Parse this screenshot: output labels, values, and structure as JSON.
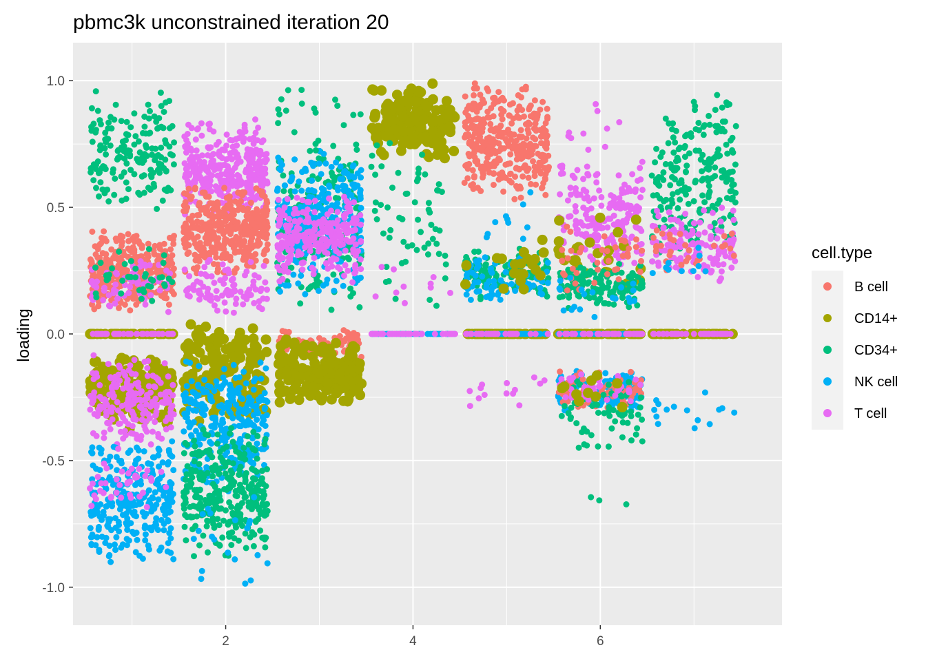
{
  "chart_data": {
    "type": "scatter",
    "title": "pbmc3k unconstrained iteration 20",
    "xlabel": "",
    "ylabel": "loading",
    "xlim": [
      0.37,
      7.94
    ],
    "ylim": [
      -1.15,
      1.15
    ],
    "x_ticks": [
      2,
      4,
      6
    ],
    "x_tick_labels": [
      "2",
      "4",
      "6"
    ],
    "y_ticks": [
      -1.0,
      -0.5,
      0.0,
      0.5,
      1.0
    ],
    "y_tick_labels": [
      "-1.0",
      "-0.5",
      "0.0",
      "0.5",
      "1.0"
    ],
    "grid": true,
    "legend": {
      "title": "cell.type",
      "position": "right"
    },
    "series": [
      {
        "name": "B cell",
        "color": "#F8766D"
      },
      {
        "name": "CD14+",
        "color": "#A3A500"
      },
      {
        "name": "CD34+",
        "color": "#00BF7D"
      },
      {
        "name": "NK cell",
        "color": "#00B0F6"
      },
      {
        "name": "T cell",
        "color": "#E76BF3"
      }
    ],
    "jitter_width": 0.45,
    "groups": [
      {
        "x": 1,
        "clusters": [
          {
            "series": "CD34+",
            "y": [
              0.45,
              0.98
            ],
            "n": 170,
            "size": 1
          },
          {
            "series": "B cell",
            "y": [
              0.08,
              0.42
            ],
            "n": 320,
            "size": 1
          },
          {
            "series": "T cell",
            "y": [
              0.08,
              0.3
            ],
            "n": 70,
            "size": 1
          },
          {
            "series": "CD34+",
            "y": [
              0.1,
              0.35
            ],
            "n": 40,
            "size": 1
          },
          {
            "series": "CD14+",
            "y": [
              0.0,
              0.0
            ],
            "n": 40,
            "size": 1.5
          },
          {
            "series": "T cell",
            "y": [
              0.0,
              0.0
            ],
            "n": 40,
            "size": 1
          },
          {
            "series": "CD14+",
            "y": [
              -0.38,
              -0.08
            ],
            "n": 160,
            "size": 1.5
          },
          {
            "series": "T cell",
            "y": [
              -0.45,
              -0.08
            ],
            "n": 200,
            "size": 1
          },
          {
            "series": "NK cell",
            "y": [
              -0.92,
              -0.4
            ],
            "n": 300,
            "size": 1
          },
          {
            "series": "T cell",
            "y": [
              -0.7,
              -0.45
            ],
            "n": 40,
            "size": 1
          }
        ]
      },
      {
        "x": 2,
        "clusters": [
          {
            "series": "T cell",
            "y": [
              0.45,
              0.85
            ],
            "n": 340,
            "size": 1
          },
          {
            "series": "B cell",
            "y": [
              0.22,
              0.6
            ],
            "n": 380,
            "size": 1
          },
          {
            "series": "T cell",
            "y": [
              0.05,
              0.3
            ],
            "n": 90,
            "size": 1
          },
          {
            "series": "CD14+",
            "y": [
              -0.35,
              0.06
            ],
            "n": 150,
            "size": 1.5
          },
          {
            "series": "NK cell",
            "y": [
              -0.65,
              -0.05
            ],
            "n": 280,
            "size": 1
          },
          {
            "series": "CD34+",
            "y": [
              -0.9,
              -0.35
            ],
            "n": 320,
            "size": 1
          },
          {
            "series": "NK cell",
            "y": [
              -1.0,
              -0.6
            ],
            "n": 20,
            "size": 1
          }
        ]
      },
      {
        "x": 3,
        "clusters": [
          {
            "series": "CD34+",
            "y": [
              0.08,
              0.8
            ],
            "n": 230,
            "size": 1
          },
          {
            "series": "NK cell",
            "y": [
              0.15,
              0.75
            ],
            "n": 300,
            "size": 1
          },
          {
            "series": "T cell",
            "y": [
              0.2,
              0.55
            ],
            "n": 250,
            "size": 1
          },
          {
            "series": "CD34+",
            "y": [
              0.7,
              1.0
            ],
            "n": 20,
            "size": 1
          },
          {
            "series": "B cell",
            "y": [
              -0.1,
              0.02
            ],
            "n": 90,
            "size": 1
          },
          {
            "series": "CD14+",
            "y": [
              -0.3,
              0.0
            ],
            "n": 170,
            "size": 1.5
          }
        ]
      },
      {
        "x": 4,
        "clusters": [
          {
            "series": "CD14+",
            "y": [
              0.68,
              1.0
            ],
            "n": 150,
            "size": 1.5
          },
          {
            "series": "CD34+",
            "y": [
              0.1,
              0.82
            ],
            "n": 60,
            "size": 1
          },
          {
            "series": "NK cell",
            "y": [
              0.0,
              0.0
            ],
            "n": 60,
            "size": 1
          },
          {
            "series": "T cell",
            "y": [
              0.0,
              0.0
            ],
            "n": 40,
            "size": 1
          },
          {
            "series": "T cell",
            "y": [
              0.05,
              0.3
            ],
            "n": 10,
            "size": 1
          }
        ]
      },
      {
        "x": 5,
        "clusters": [
          {
            "series": "B cell",
            "y": [
              0.52,
              1.0
            ],
            "n": 360,
            "size": 1
          },
          {
            "series": "CD34+",
            "y": [
              0.12,
              0.35
            ],
            "n": 120,
            "size": 1
          },
          {
            "series": "NK cell",
            "y": [
              0.12,
              0.32
            ],
            "n": 80,
            "size": 1
          },
          {
            "series": "CD14+",
            "y": [
              0.15,
              0.38
            ],
            "n": 20,
            "size": 1.5
          },
          {
            "series": "NK cell",
            "y": [
              0.35,
              0.6
            ],
            "n": 10,
            "size": 1
          },
          {
            "series": "CD14+",
            "y": [
              0.0,
              0.0
            ],
            "n": 60,
            "size": 1.5
          },
          {
            "series": "NK cell",
            "y": [
              0.0,
              0.0
            ],
            "n": 50,
            "size": 1
          },
          {
            "series": "T cell",
            "y": [
              0.0,
              0.0
            ],
            "n": 30,
            "size": 1
          },
          {
            "series": "T cell",
            "y": [
              -0.3,
              -0.15
            ],
            "n": 14,
            "size": 1
          }
        ]
      },
      {
        "x": 6,
        "clusters": [
          {
            "series": "T cell",
            "y": [
              0.2,
              0.7
            ],
            "n": 200,
            "size": 1
          },
          {
            "series": "CD14+",
            "y": [
              0.15,
              0.5
            ],
            "n": 25,
            "size": 1.5
          },
          {
            "series": "CD34+",
            "y": [
              0.1,
              0.28
            ],
            "n": 150,
            "size": 1
          },
          {
            "series": "B cell",
            "y": [
              0.15,
              0.45
            ],
            "n": 40,
            "size": 1
          },
          {
            "series": "NK cell",
            "y": [
              0.05,
              0.25
            ],
            "n": 20,
            "size": 1
          },
          {
            "series": "T cell",
            "y": [
              0.7,
              0.96
            ],
            "n": 10,
            "size": 1
          },
          {
            "series": "CD14+",
            "y": [
              0.0,
              0.0
            ],
            "n": 50,
            "size": 1.5
          },
          {
            "series": "NK cell",
            "y": [
              0.0,
              0.0
            ],
            "n": 40,
            "size": 1
          },
          {
            "series": "T cell",
            "y": [
              0.0,
              0.0
            ],
            "n": 40,
            "size": 1
          },
          {
            "series": "NK cell",
            "y": [
              -0.32,
              -0.13
            ],
            "n": 150,
            "size": 1
          },
          {
            "series": "B cell",
            "y": [
              -0.3,
              -0.14
            ],
            "n": 80,
            "size": 1
          },
          {
            "series": "CD34+",
            "y": [
              -0.5,
              -0.12
            ],
            "n": 70,
            "size": 1
          },
          {
            "series": "T cell",
            "y": [
              -0.3,
              -0.13
            ],
            "n": 40,
            "size": 1
          },
          {
            "series": "CD14+",
            "y": [
              -0.3,
              -0.15
            ],
            "n": 10,
            "size": 1.5
          },
          {
            "series": "CD34+",
            "y": [
              -0.72,
              -0.55
            ],
            "n": 3,
            "size": 1
          }
        ]
      },
      {
        "x": 7,
        "clusters": [
          {
            "series": "CD34+",
            "y": [
              0.25,
              1.0
            ],
            "n": 220,
            "size": 1
          },
          {
            "series": "T cell",
            "y": [
              0.2,
              0.5
            ],
            "n": 140,
            "size": 1
          },
          {
            "series": "B cell",
            "y": [
              0.22,
              0.45
            ],
            "n": 30,
            "size": 1
          },
          {
            "series": "NK cell",
            "y": [
              0.2,
              0.35
            ],
            "n": 10,
            "size": 1
          },
          {
            "series": "CD14+",
            "y": [
              0.0,
              0.0
            ],
            "n": 40,
            "size": 1.5
          },
          {
            "series": "T cell",
            "y": [
              0.0,
              0.0
            ],
            "n": 40,
            "size": 1
          },
          {
            "series": "NK cell",
            "y": [
              -0.4,
              -0.22
            ],
            "n": 15,
            "size": 1
          }
        ]
      }
    ]
  }
}
